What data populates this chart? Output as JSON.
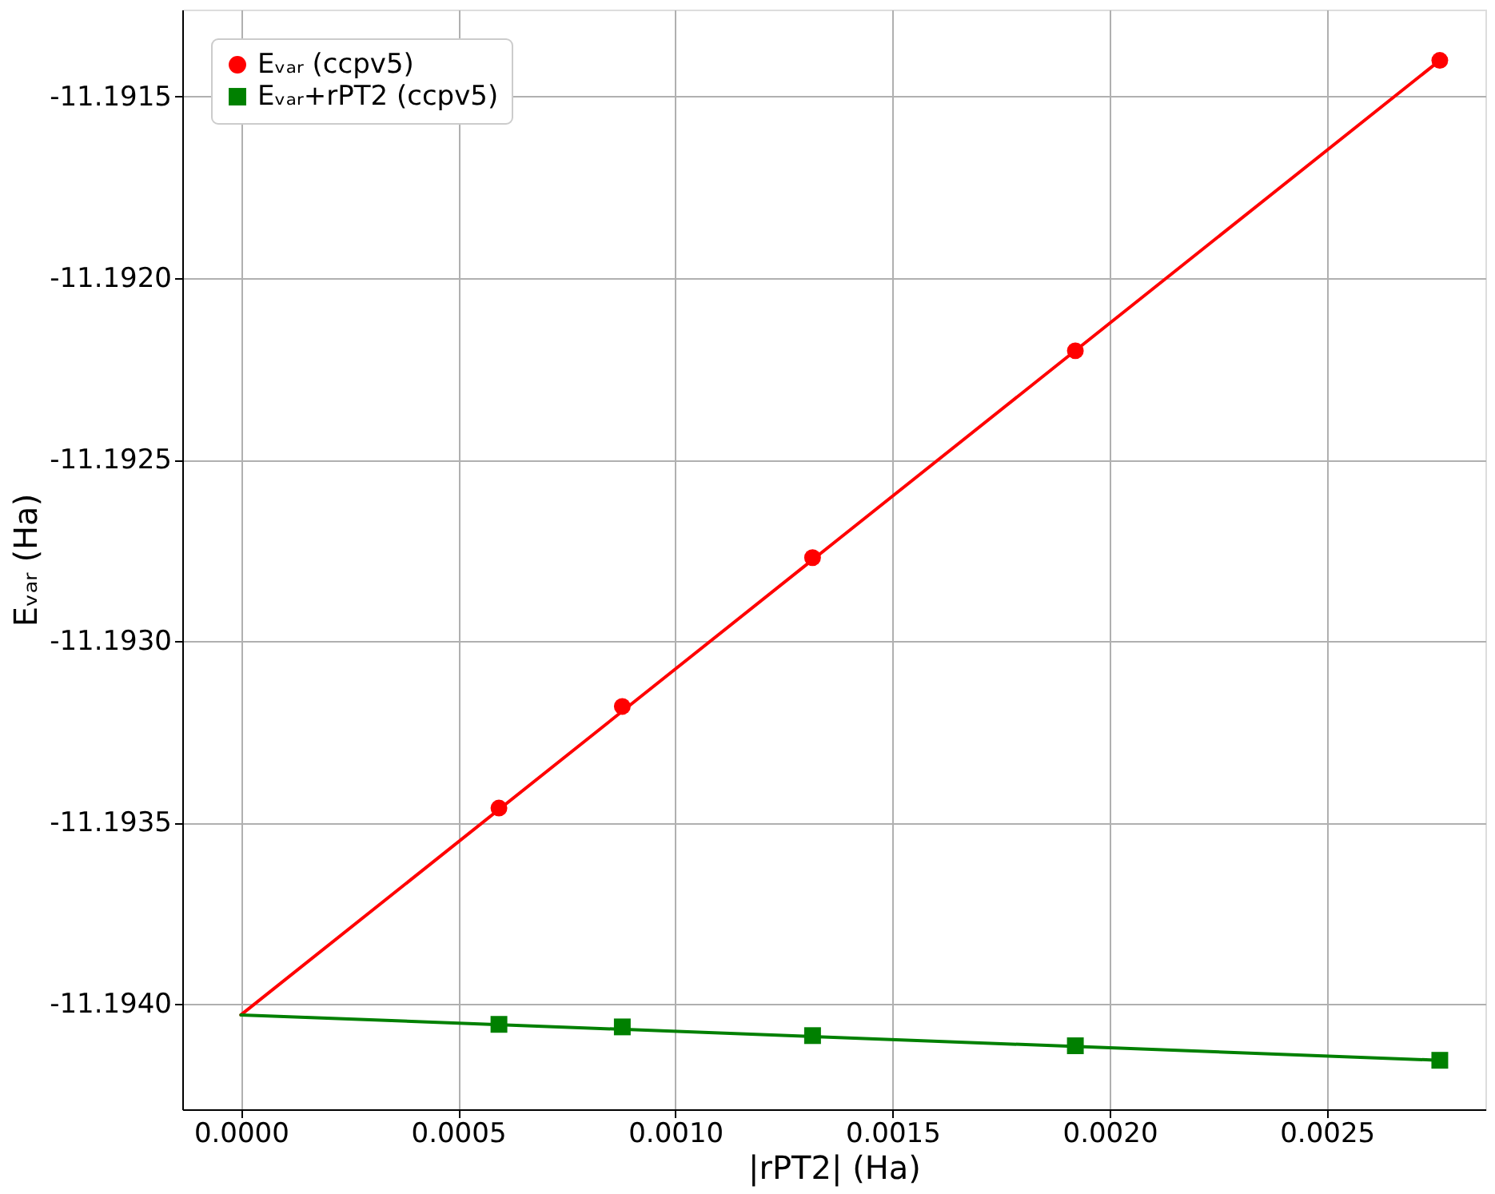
{
  "chart_data": {
    "type": "scatter",
    "xlabel": "|rPT2| (Ha)",
    "ylabel": "Eᵥₐᵣ (Ha)",
    "xlim": [
      -0.000135,
      0.002865
    ],
    "ylim": [
      -11.19429,
      -11.19126
    ],
    "xticks": [
      {
        "value": 0,
        "label": "0.0000"
      },
      {
        "value": 0.0005,
        "label": "0.0005"
      },
      {
        "value": 0.001,
        "label": "0.0010"
      },
      {
        "value": 0.0015,
        "label": "0.0015"
      },
      {
        "value": 0.002,
        "label": "0.0020"
      },
      {
        "value": 0.0025,
        "label": "0.0025"
      }
    ],
    "yticks": [
      {
        "value": -11.194,
        "label": "-11.1940"
      },
      -11.1935,
      {
        "value": -11.193,
        "label": "-11.1930"
      },
      -11.1925,
      {
        "value": -11.192,
        "label": "-11.1920"
      },
      -11.1915
    ],
    "grid": true,
    "legend": "top left",
    "series": [
      {
        "name": "Eᵥₐᵣ (ccpv5)",
        "marker": "circle",
        "color": "#ff0000",
        "x": [
          0.000594,
          0.000878,
          0.001316,
          0.001921,
          0.00276
        ],
        "values": [
          -11.19346,
          -11.19318,
          -11.19277,
          -11.1922,
          -11.1914
        ]
      },
      {
        "name": "Eᵥₐᵣ+rPT2 (ccpv5)",
        "marker": "square",
        "color": "#008000",
        "x": [
          0.000594,
          0.000878,
          0.001316,
          0.001921,
          0.00276
        ],
        "values": [
          -11.194056,
          -11.194063,
          -11.194087,
          -11.194115,
          -11.194155
        ]
      },
      {
        "type": "line",
        "marker": "none",
        "color": "#ff0000",
        "x": [
          0,
          0.00276
        ],
        "values": [
          -11.19403,
          -11.1914
        ]
      },
      {
        "type": "line",
        "marker": "none",
        "color": "#008000",
        "x": [
          0,
          0.00276
        ],
        "values": [
          -11.19403,
          -11.194155
        ]
      }
    ]
  }
}
